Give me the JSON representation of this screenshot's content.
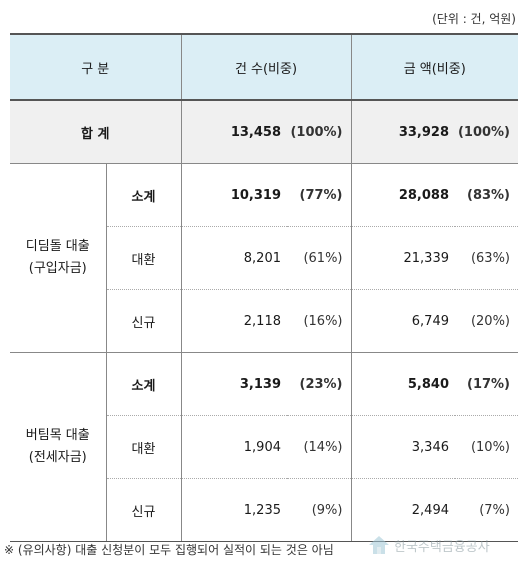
{
  "unit_note": "(단위 : 건, 억원)",
  "headers": {
    "category": "구 분",
    "count": "건 수(비중)",
    "amount": "금 액(비중)"
  },
  "total": {
    "label": "합 계",
    "count": "13,458",
    "count_pct": "(100%)",
    "amount": "33,928",
    "amount_pct": "(100%)"
  },
  "groups": [
    {
      "label_line1": "디딤돌 대출",
      "label_line2": "(구입자금)",
      "rows": [
        {
          "sub": "소계",
          "count": "10,319",
          "count_pct": "(77%)",
          "amount": "28,088",
          "amount_pct": "(83%)"
        },
        {
          "sub": "대환",
          "count": "8,201",
          "count_pct": "(61%)",
          "amount": "21,339",
          "amount_pct": "(63%)"
        },
        {
          "sub": "신규",
          "count": "2,118",
          "count_pct": "(16%)",
          "amount": "6,749",
          "amount_pct": "(20%)"
        }
      ]
    },
    {
      "label_line1": "버팀목 대출",
      "label_line2": "(전세자금)",
      "rows": [
        {
          "sub": "소계",
          "count": "3,139",
          "count_pct": "(23%)",
          "amount": "5,840",
          "amount_pct": "(17%)"
        },
        {
          "sub": "대환",
          "count": "1,904",
          "count_pct": "(14%)",
          "amount": "3,346",
          "amount_pct": "(10%)"
        },
        {
          "sub": "신규",
          "count": "1,235",
          "count_pct": "(9%)",
          "amount": "2,494",
          "amount_pct": "(7%)"
        }
      ]
    }
  ],
  "footnote": "※ (유의사항) 대출 신청분이 모두 집행되어 실적이 되는 것은 아님",
  "watermark": "한국주택금융공사"
}
